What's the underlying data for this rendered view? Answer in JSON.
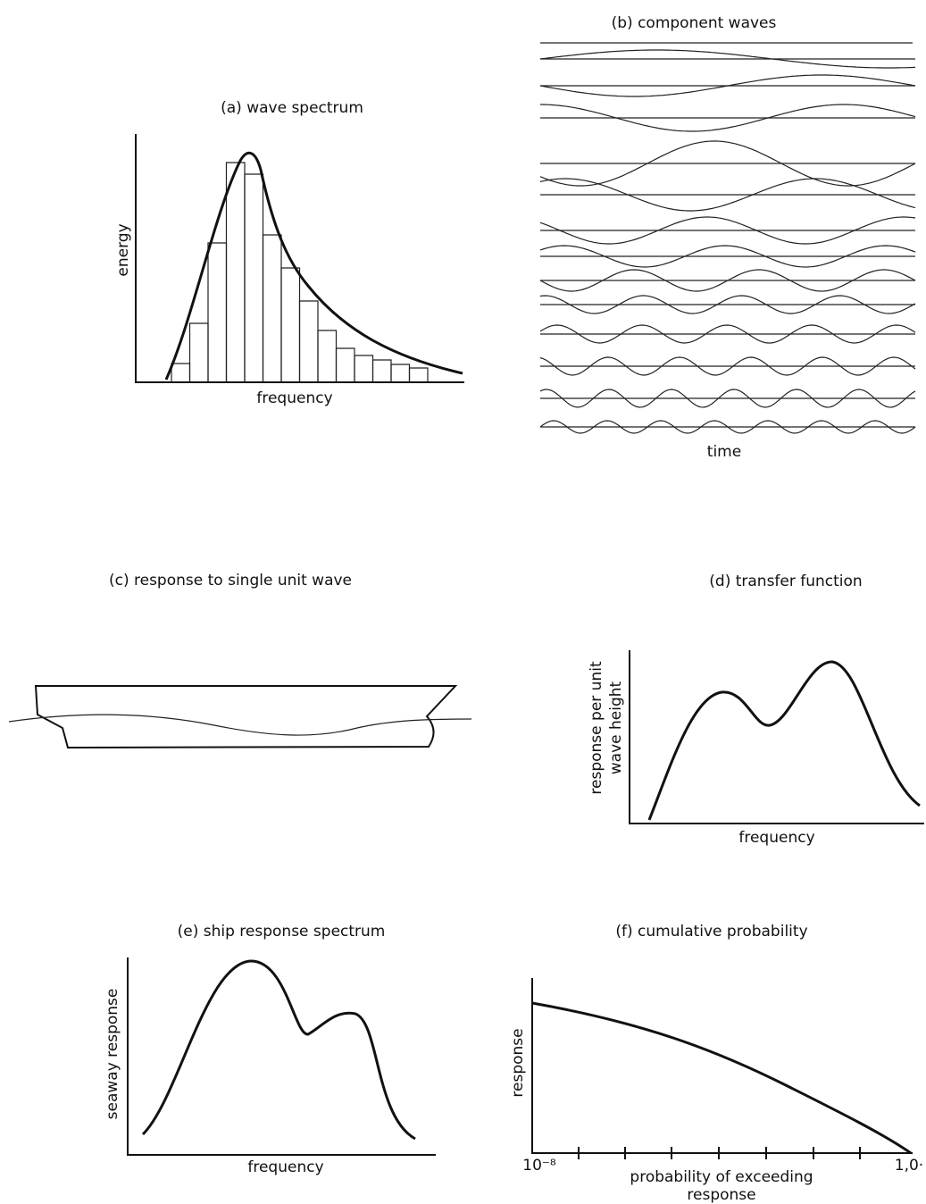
{
  "panels": {
    "a": {
      "title": "(a) wave spectrum",
      "y_label": "energy",
      "x_label": "frequency"
    },
    "b": {
      "title": "(b) component waves",
      "x_label": "time"
    },
    "c": {
      "title": "(c) response to single unit wave"
    },
    "d": {
      "title": "(d) transfer function",
      "y_label": [
        "response per unit",
        "wave height"
      ],
      "x_label": "frequency"
    },
    "e": {
      "title": "(e) ship response spectrum",
      "y_label": "seaway response",
      "x_label": "frequency"
    },
    "f": {
      "title": "(f) cumulative probability",
      "y_label": "response",
      "x_start": "10⁻⁸",
      "x_end": "1,0·",
      "x_label": [
        "probability of exceeding",
        "response"
      ]
    }
  }
}
